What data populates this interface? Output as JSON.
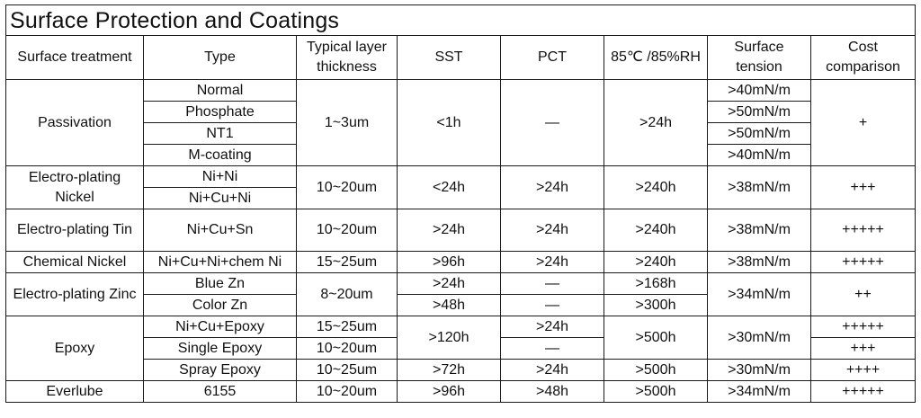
{
  "title": "Surface Protection and Coatings",
  "headers": {
    "treatment": "Surface treatment",
    "type": "Type",
    "thickness": "Typical layer thickness",
    "sst": "SST",
    "pct": "PCT",
    "rh": "85℃ /85%RH",
    "tension": "Surface tension",
    "cost": "Cost comparison"
  },
  "passivation": {
    "name": "Passivation",
    "types": [
      "Normal",
      "Phosphate",
      "NT1",
      "M-coating"
    ],
    "thickness": "1~3um",
    "sst": "<1h",
    "pct": "—",
    "rh": ">24h",
    "tension": [
      ">40mN/m",
      ">50mN/m",
      ">50mN/m",
      ">40mN/m"
    ],
    "cost": "+"
  },
  "ep_nickel": {
    "name": "Electro-plating Nickel",
    "types": [
      "Ni+Ni",
      "Ni+Cu+Ni"
    ],
    "thickness": "10~20um",
    "sst": "<24h",
    "pct": ">24h",
    "rh": ">240h",
    "tension": ">38mN/m",
    "cost": "+++"
  },
  "ep_tin": {
    "name": "Electro-plating Tin",
    "type": "Ni+Cu+Sn",
    "thickness": "10~20um",
    "sst": ">24h",
    "pct": ">24h",
    "rh": ">240h",
    "tension": ">38mN/m",
    "cost": "+++++"
  },
  "chem_nickel": {
    "name": "Chemical Nickel",
    "type": "Ni+Cu+Ni+chem Ni",
    "thickness": "15~25um",
    "sst": ">96h",
    "pct": ">24h",
    "rh": ">240h",
    "tension": ">38mN/m",
    "cost": "+++++"
  },
  "ep_zinc": {
    "name": "Electro-plating Zinc",
    "types": [
      "Blue Zn",
      "Color Zn"
    ],
    "thickness": "8~20um",
    "sst": [
      ">24h",
      ">48h"
    ],
    "pct": [
      "—",
      "—"
    ],
    "rh": [
      ">168h",
      ">300h"
    ],
    "tension": ">34mN/m",
    "cost": "++"
  },
  "epoxy": {
    "name": "Epoxy",
    "types": [
      "Ni+Cu+Epoxy",
      "Single Epoxy",
      "Spray Epoxy"
    ],
    "thickness": [
      "15~25um",
      "10~20um",
      "10~25um"
    ],
    "sst_a": ">120h",
    "sst_b": ">72h",
    "pct": [
      ">24h",
      "—",
      ">24h"
    ],
    "rh_a": ">500h",
    "rh_b": ">500h",
    "tension_a": ">30mN/m",
    "tension_b": ">30mN/m",
    "cost": [
      "+++++",
      "+++",
      "++++"
    ]
  },
  "everlube": {
    "name": "Everlube",
    "type": "6155",
    "thickness": "10~20um",
    "sst": ">96h",
    "pct": ">48h",
    "rh": ">500h",
    "tension": ">34mN/m",
    "cost": "+++++"
  }
}
